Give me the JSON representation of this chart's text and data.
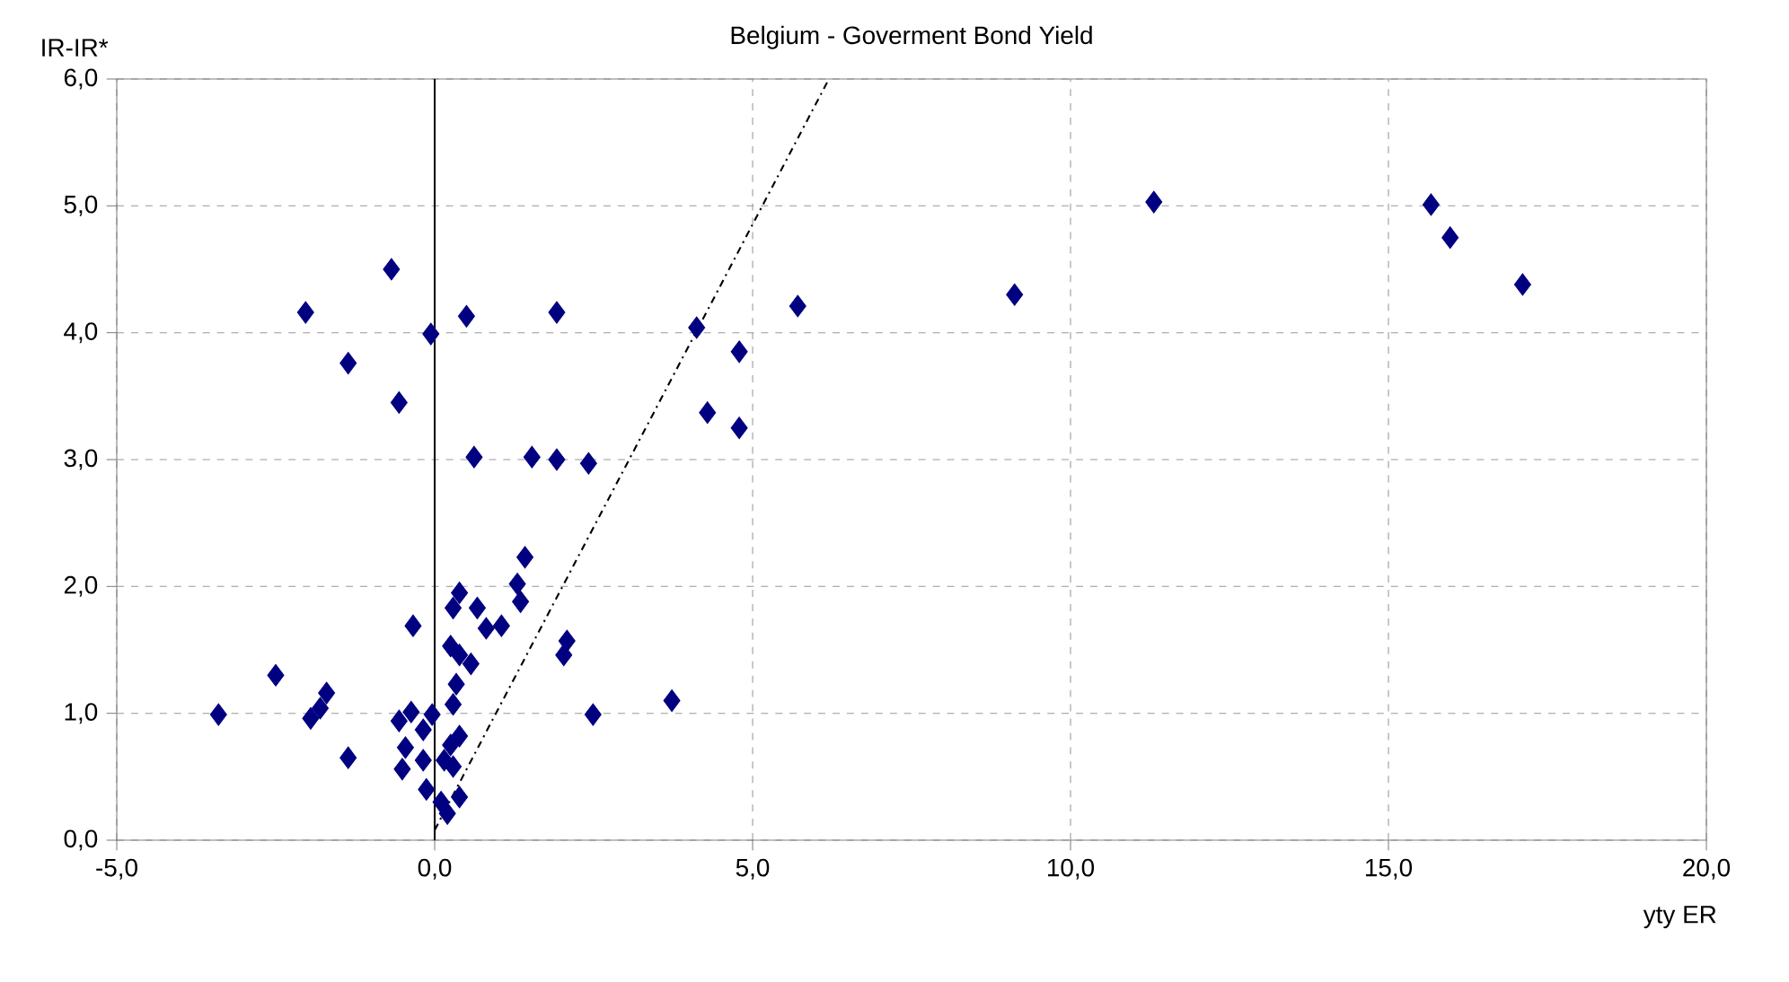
{
  "chart_data": {
    "type": "scatter",
    "title": "Belgium - Goverment Bond Yield",
    "xlabel": "yty ER",
    "ylabel": "IR-IR*",
    "xlim": [
      -5,
      20
    ],
    "ylim": [
      0,
      6
    ],
    "xticks": [
      {
        "value": -5,
        "label": "-5,0"
      },
      {
        "value": 0,
        "label": "0,0"
      },
      {
        "value": 5,
        "label": "5,0"
      },
      {
        "value": 10,
        "label": "10,0"
      },
      {
        "value": 15,
        "label": "15,0"
      },
      {
        "value": 20,
        "label": "20,0"
      }
    ],
    "yticks": [
      {
        "value": 0,
        "label": "0,0"
      },
      {
        "value": 1,
        "label": "1,0"
      },
      {
        "value": 2,
        "label": "2,0"
      },
      {
        "value": 3,
        "label": "3,0"
      },
      {
        "value": 4,
        "label": "4,0"
      },
      {
        "value": 5,
        "label": "5,0"
      },
      {
        "value": 6,
        "label": "6,0"
      }
    ],
    "grid": true,
    "ref_lines": [
      {
        "axis": "x",
        "value": 0,
        "color": "#000000",
        "line_style": "solid"
      }
    ],
    "series": [
      {
        "color": "#000080",
        "marker": "diamond",
        "x": [
          -3.4,
          -2.5,
          -1.7,
          -1.8,
          -1.95,
          -1.36,
          -0.34,
          -0.56,
          -0.37,
          -0.46,
          -0.51,
          -0.18,
          -0.04,
          -0.13,
          -0.18,
          0.1,
          0.2,
          0.39,
          0.15,
          0.29,
          0.39,
          0.25,
          0.29,
          0.34,
          0.25,
          0.39,
          0.57,
          0.39,
          0.29,
          0.67,
          0.81,
          1.05,
          1.3,
          1.35,
          1.42,
          2.08,
          2.03,
          2.49,
          3.73,
          -0.68,
          -2.03,
          -1.36,
          -0.56,
          -0.06,
          0.5,
          1.92,
          0.62,
          1.53,
          1.92,
          2.42,
          4.12,
          4.79,
          4.29,
          4.79,
          5.71,
          9.12,
          11.31,
          15.67,
          15.97,
          17.11
        ],
        "values": [
          0.99,
          1.3,
          1.16,
          1.04,
          0.96,
          0.65,
          1.69,
          0.94,
          1.01,
          0.73,
          0.56,
          0.87,
          0.99,
          0.4,
          0.63,
          0.3,
          0.21,
          0.34,
          0.63,
          0.58,
          0.82,
          0.75,
          1.07,
          1.23,
          1.53,
          1.46,
          1.39,
          1.95,
          1.83,
          1.83,
          1.67,
          1.69,
          2.02,
          1.88,
          2.23,
          1.57,
          1.46,
          0.99,
          1.1,
          4.5,
          4.16,
          3.76,
          3.45,
          3.99,
          4.13,
          4.16,
          3.02,
          3.02,
          3.0,
          2.97,
          4.04,
          3.85,
          3.37,
          3.25,
          4.21,
          4.3,
          5.03,
          5.01,
          4.75,
          4.38
        ]
      },
      {
        "type": "line",
        "color": "#000000",
        "marker": "none",
        "line_style": "dashed",
        "x": [
          0.0,
          6.2
        ],
        "values": [
          0.08,
          6.0
        ]
      }
    ]
  }
}
